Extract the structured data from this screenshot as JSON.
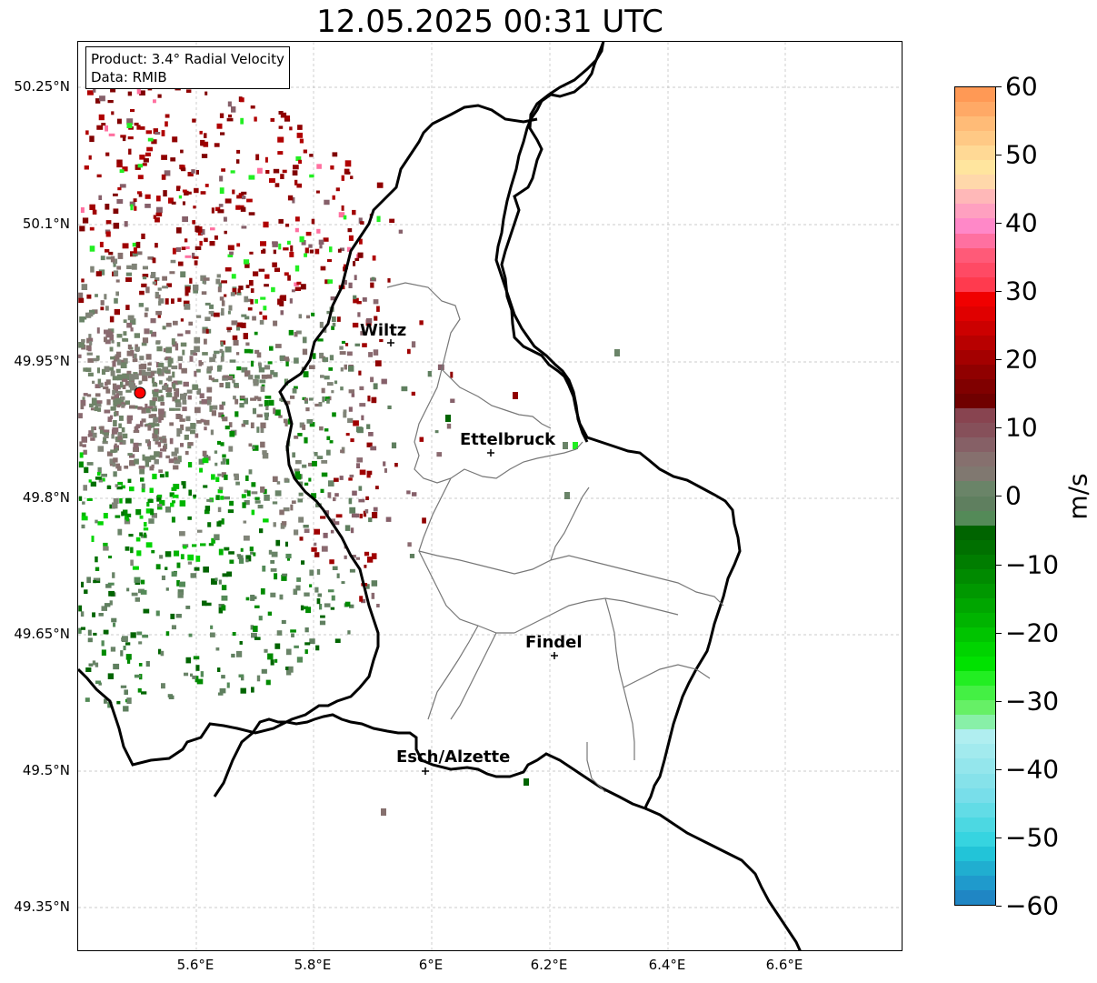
{
  "title": "12.05.2025 00:31 UTC",
  "info_box": {
    "product": "Product: 3.4° Radial Velocity",
    "data": "Data: RMIB"
  },
  "axes": {
    "lon_ticks": [
      "5.6°E",
      "5.8°E",
      "6°E",
      "6.2°E",
      "6.4°E",
      "6.6°E"
    ],
    "lat_ticks": [
      "50.25°N",
      "50.1°N",
      "49.95°N",
      "49.8°N",
      "49.65°N",
      "49.5°N",
      "49.35°N"
    ]
  },
  "colorbar": {
    "unit": "m/s",
    "ticks": [
      "60",
      "50",
      "40",
      "30",
      "20",
      "10",
      "0",
      "−10",
      "−20",
      "−30",
      "−40",
      "−50",
      "−60"
    ],
    "range": [
      -60,
      60
    ],
    "colors_top_to_bottom": [
      "#ff9955",
      "#ffa966",
      "#ffbb77",
      "#ffc985",
      "#ffd995",
      "#ffe59e",
      "#ffd8aa",
      "#ffb8b8",
      "#ffa0c0",
      "#ff88c8",
      "#ff70a0",
      "#ff5a78",
      "#ff4a64",
      "#ff3a4e",
      "#f00000",
      "#e00000",
      "#cc0000",
      "#b80000",
      "#a40000",
      "#900000",
      "#800000",
      "#700000",
      "#884450",
      "#86505a",
      "#866066",
      "#86706e",
      "#807870",
      "#6a8468",
      "#5f7f5f",
      "#548a58",
      "#006400",
      "#007000",
      "#007d00",
      "#008a00",
      "#009800",
      "#00a600",
      "#00b400",
      "#00c400",
      "#00d400",
      "#00e200",
      "#22ee22",
      "#44f044",
      "#66f066",
      "#88f0a8",
      "#b0eef0",
      "#a2eaee",
      "#94e6ec",
      "#86e2ea",
      "#78deea",
      "#62dce6",
      "#4cd8e2",
      "#36d4e0",
      "#22c4d8",
      "#20aed0",
      "#1f9acc",
      "#1f86c4"
    ]
  },
  "cities": [
    {
      "name": "Wiltz"
    },
    {
      "name": "Ettelbruck"
    },
    {
      "name": "Findel"
    },
    {
      "name": "Esch/Alzette"
    }
  ]
}
